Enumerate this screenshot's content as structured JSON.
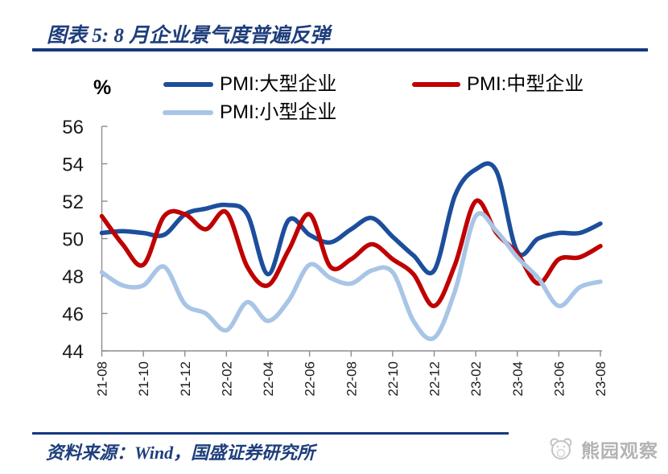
{
  "title": {
    "text": "图表 5: 8 月企业景气度普遍反弹"
  },
  "chart_data": {
    "type": "line",
    "title": "图表 5: 8 月企业景气度普遍反弹",
    "unit_label": "%",
    "smoothed": true,
    "grid": false,
    "legend_position": "top",
    "ylim": [
      44,
      56
    ],
    "yticks": [
      44,
      46,
      48,
      50,
      52,
      54,
      56
    ],
    "categories": [
      "21-08",
      "21-09",
      "21-10",
      "21-11",
      "21-12",
      "22-01",
      "22-02",
      "22-03",
      "22-04",
      "22-05",
      "22-06",
      "22-07",
      "22-08",
      "22-09",
      "22-10",
      "22-11",
      "22-12",
      "23-01",
      "23-02",
      "23-03",
      "23-04",
      "23-05",
      "23-06",
      "23-07",
      "23-08"
    ],
    "xtick_labels": [
      "21-08",
      "21-10",
      "21-12",
      "22-02",
      "22-04",
      "22-06",
      "22-08",
      "22-10",
      "22-12",
      "23-02",
      "23-04",
      "23-06",
      "23-08"
    ],
    "axis_color": "#8c8c8c",
    "series": [
      {
        "name": "PMI:大型企业",
        "color": "#1c4e9c",
        "values": [
          50.3,
          50.4,
          50.3,
          50.2,
          51.3,
          51.6,
          51.8,
          51.3,
          48.1,
          51.0,
          50.2,
          49.8,
          50.5,
          51.1,
          50.1,
          49.1,
          48.3,
          52.3,
          53.7,
          53.6,
          49.3,
          50.0,
          50.3,
          50.3,
          50.8
        ]
      },
      {
        "name": "PMI:中型企业",
        "color": "#bf0000",
        "values": [
          51.2,
          49.7,
          48.6,
          51.2,
          51.3,
          50.5,
          51.4,
          48.5,
          47.5,
          49.4,
          51.3,
          48.5,
          48.9,
          49.7,
          48.9,
          48.1,
          46.4,
          48.6,
          52.0,
          50.3,
          49.2,
          47.6,
          48.9,
          49.0,
          49.6
        ]
      },
      {
        "name": "PMI:小型企业",
        "color": "#a8c5e6",
        "values": [
          48.2,
          47.5,
          47.5,
          48.5,
          46.5,
          46.0,
          45.1,
          46.6,
          45.6,
          46.7,
          48.6,
          47.9,
          47.6,
          48.3,
          48.2,
          45.6,
          44.7,
          47.2,
          51.2,
          50.4,
          49.0,
          47.9,
          46.4,
          47.4,
          47.7
        ]
      }
    ]
  },
  "footer": {
    "source_text": "资料来源：Wind，国盛证券研究所"
  },
  "watermark": {
    "text": "熊园观察",
    "icon": "bear-logo"
  }
}
